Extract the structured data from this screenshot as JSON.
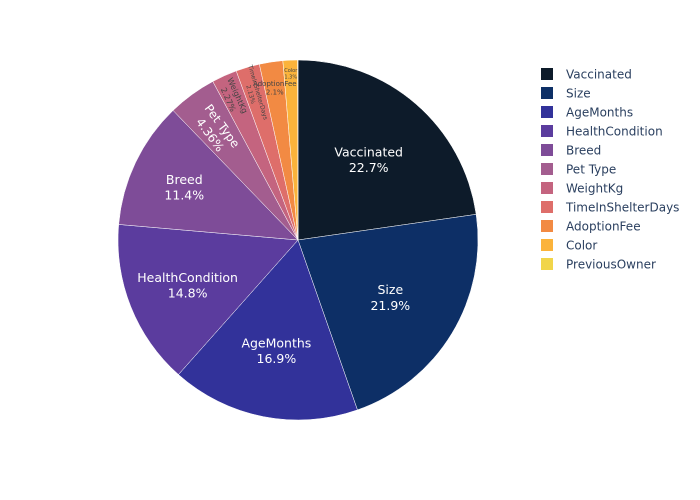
{
  "chart_data": {
    "type": "pie",
    "labels": [
      "Vaccinated",
      "Size",
      "AgeMonths",
      "HealthCondition",
      "Breed",
      "Pet Type",
      "WeightKg",
      "TimeInShelterDays",
      "AdoptionFee",
      "Color",
      "PreviousOwner"
    ],
    "values": [
      22.7,
      21.9,
      16.9,
      14.8,
      11.4,
      4.36,
      2.27,
      2.13,
      2.1,
      1.3,
      0.04
    ],
    "display_percent": [
      "22.7%",
      "21.9%",
      "16.9%",
      "14.8%",
      "11.4%",
      "4.36%",
      "2.27%",
      "2.13%",
      "2.1%",
      "1.3%",
      ""
    ],
    "colors": [
      "#0d1b2a",
      "#0d2f66",
      "#32329a",
      "#5b3c9e",
      "#7e4c98",
      "#a35d8f",
      "#c4647f",
      "#de6e6a",
      "#f28a43",
      "#fbb33b",
      "#f1d54a"
    ],
    "legend_position": "right",
    "sort": "descending",
    "direction": "clockwise",
    "start_angle": "top"
  }
}
